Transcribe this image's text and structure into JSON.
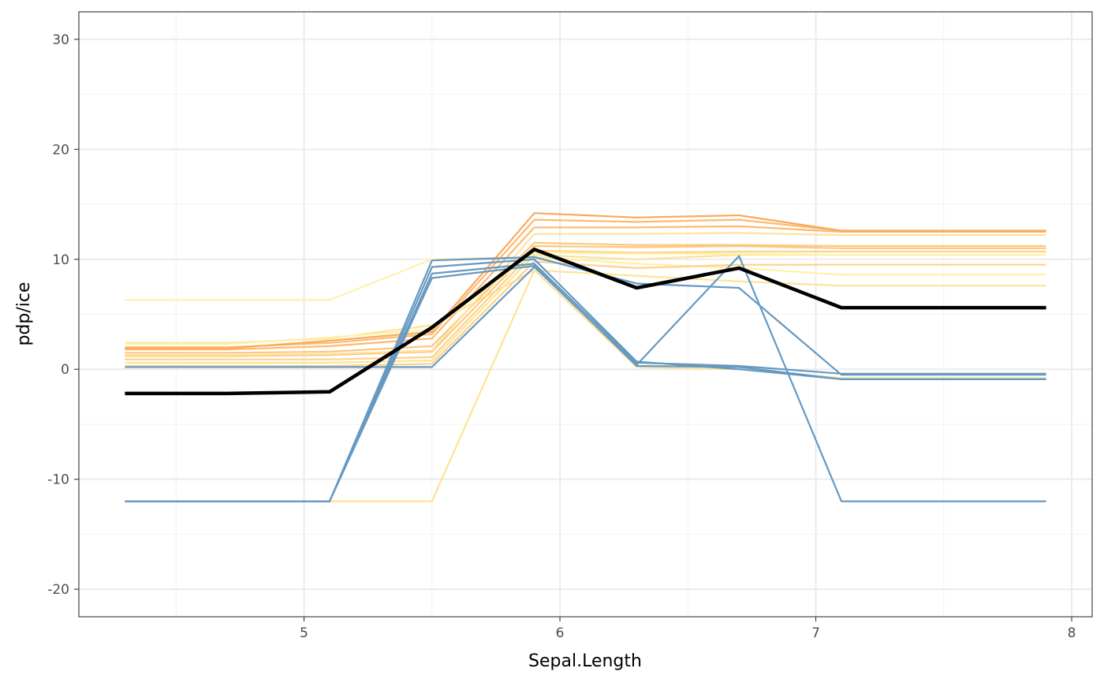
{
  "chart_data": {
    "type": "line",
    "title": "",
    "xlabel": "Sepal.Length",
    "ylabel": "pdp/ice",
    "xlim": [
      4.12,
      8.08
    ],
    "ylim": [
      -22.5,
      32.5
    ],
    "x_ticks": [
      5,
      6,
      7,
      8
    ],
    "x_tick_labels": [
      "5",
      "6",
      "7",
      "8"
    ],
    "y_ticks": [
      -20,
      -10,
      0,
      10,
      20,
      30
    ],
    "y_tick_labels": [
      "-20",
      "-10",
      "0",
      "10",
      "20",
      "30"
    ],
    "grid": true,
    "legend": "none",
    "x": [
      4.3,
      4.7,
      5.1,
      5.5,
      5.9,
      6.3,
      6.7,
      7.1,
      7.9
    ],
    "ice_series": [
      {
        "color": "#FDE395",
        "values": [
          2.4,
          2.4,
          2.8,
          4.0,
          9.0,
          8.5,
          8.0,
          7.6,
          7.6
        ]
      },
      {
        "color": "#FFF1A8",
        "values": [
          6.3,
          6.3,
          6.3,
          10.0,
          10.2,
          9.6,
          9.2,
          8.6,
          8.6
        ]
      },
      {
        "color": "#FDE395",
        "values": [
          -12.0,
          -12.0,
          -12.0,
          -12.0,
          9.0,
          0.2,
          0.0,
          -0.8,
          -0.8
        ]
      },
      {
        "color": "#FDD28A",
        "values": [
          0.3,
          0.3,
          0.3,
          0.5,
          9.8,
          9.2,
          9.5,
          9.5,
          9.5
        ]
      },
      {
        "color": "#FDE395",
        "values": [
          0.6,
          0.6,
          0.6,
          0.8,
          10.4,
          10.0,
          10.4,
          10.4,
          10.4
        ]
      },
      {
        "color": "#FDD28A",
        "values": [
          0.9,
          0.9,
          0.9,
          1.1,
          10.8,
          10.6,
          10.7,
          10.7,
          10.7
        ]
      },
      {
        "color": "#FDC77E",
        "values": [
          1.2,
          1.2,
          1.3,
          1.6,
          11.2,
          11.1,
          11.2,
          11.0,
          11.0
        ]
      },
      {
        "color": "#FDC77E",
        "values": [
          1.5,
          1.5,
          1.6,
          2.1,
          11.5,
          11.3,
          11.3,
          11.2,
          11.2
        ]
      },
      {
        "color": "#FFE2A0",
        "values": [
          1.3,
          1.3,
          1.4,
          1.7,
          12.3,
          12.3,
          12.4,
          12.2,
          12.2
        ]
      },
      {
        "color": "#FDB96E",
        "values": [
          1.8,
          1.8,
          2.1,
          2.8,
          12.9,
          12.9,
          13.0,
          12.5,
          12.5
        ]
      },
      {
        "color": "#FDB96E",
        "values": [
          2.0,
          2.0,
          2.4,
          3.2,
          13.6,
          13.4,
          13.6,
          12.6,
          12.6
        ]
      },
      {
        "color": "#F9A95F",
        "values": [
          1.9,
          1.9,
          2.6,
          3.4,
          14.2,
          13.8,
          14.0,
          12.6,
          12.6
        ]
      },
      {
        "color": "#FFF1A8",
        "values": [
          2.3,
          2.3,
          2.9,
          3.6,
          10.6,
          10.5,
          10.5,
          10.4,
          10.4
        ]
      },
      {
        "color": "#6699C2",
        "values": [
          0.2,
          0.2,
          0.2,
          0.2,
          9.3,
          0.4,
          10.3,
          -12.0,
          -12.0
        ]
      },
      {
        "color": "#6699C2",
        "values": [
          -12.0,
          -12.0,
          -12.0,
          8.3,
          9.4,
          0.3,
          0.2,
          -0.9,
          -0.9
        ]
      },
      {
        "color": "#6699C2",
        "values": [
          -12.0,
          -12.0,
          -12.0,
          8.7,
          9.6,
          0.6,
          0.3,
          -0.4,
          -0.4
        ]
      },
      {
        "color": "#6699C2",
        "values": [
          -12.0,
          -12.0,
          -12.0,
          9.3,
          10.0,
          0.7,
          0.0,
          -0.9,
          -0.9
        ]
      },
      {
        "color": "#6699C2",
        "values": [
          -12.0,
          -12.0,
          -12.0,
          9.9,
          10.2,
          7.8,
          7.4,
          -0.5,
          -0.5
        ]
      }
    ],
    "pdp_series": {
      "color": "#000000",
      "values": [
        -2.2,
        -2.2,
        -2.05,
        3.8,
        10.9,
        7.4,
        9.2,
        5.6,
        5.6
      ]
    }
  }
}
